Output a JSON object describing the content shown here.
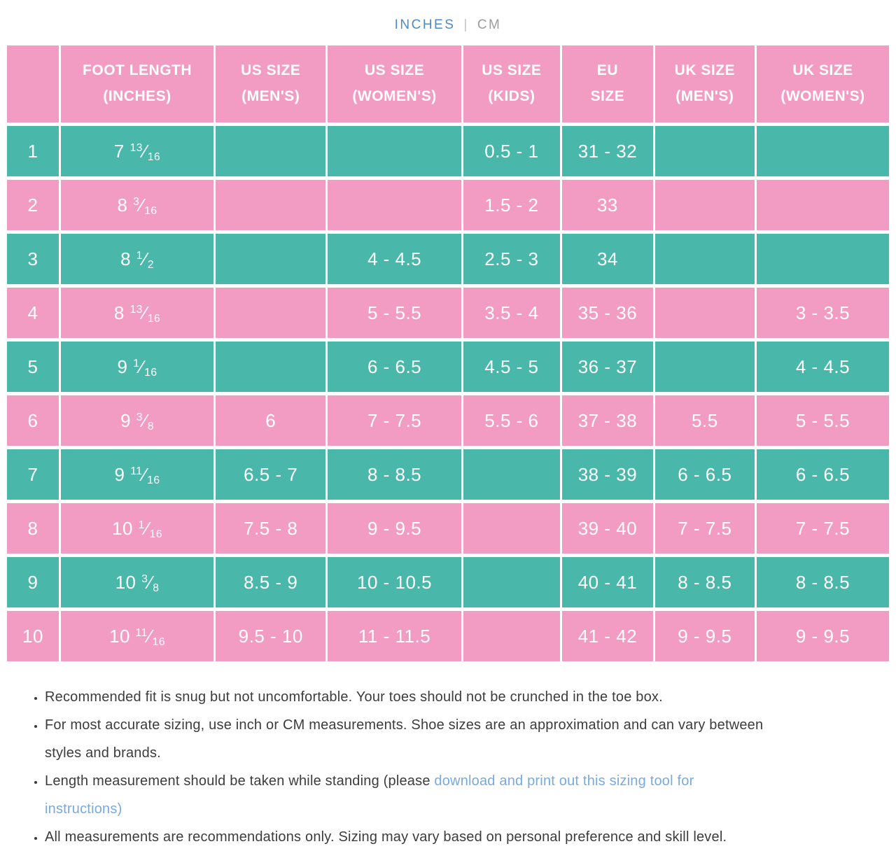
{
  "unit_toggle": {
    "inches_label": "INCHES",
    "separator": "|",
    "cm_label": "CM",
    "active_color": "#4c8bc6",
    "inactive_color": "#9c9c9c"
  },
  "table": {
    "colors": {
      "teal_row": "#49b7aa",
      "pink_row": "#f29cc4",
      "header_bg": "#f29cc4",
      "cell_text": "#ffffff"
    },
    "fraction_slash": "⁄",
    "headers": [
      {
        "line1": "",
        "line2": ""
      },
      {
        "line1": "FOOT LENGTH",
        "line2": "(INCHES)"
      },
      {
        "line1": "US SIZE",
        "line2": "(MEN'S)"
      },
      {
        "line1": "US SIZE",
        "line2": "(WOMEN'S)"
      },
      {
        "line1": "US SIZE",
        "line2": "(KIDS)"
      },
      {
        "line1": "EU",
        "line2": "SIZE"
      },
      {
        "line1": "UK SIZE",
        "line2": "(MEN'S)"
      },
      {
        "line1": "UK SIZE",
        "line2": "(WOMEN'S)"
      }
    ],
    "rows": [
      {
        "num": "1",
        "foot": {
          "whole": "7",
          "num": "13",
          "den": "16"
        },
        "us_mens": "",
        "us_womens": "",
        "us_kids": "0.5 - 1",
        "eu": "31 - 32",
        "uk_mens": "",
        "uk_womens": ""
      },
      {
        "num": "2",
        "foot": {
          "whole": "8",
          "num": "3",
          "den": "16"
        },
        "us_mens": "",
        "us_womens": "",
        "us_kids": "1.5 - 2",
        "eu": "33",
        "uk_mens": "",
        "uk_womens": ""
      },
      {
        "num": "3",
        "foot": {
          "whole": "8",
          "num": "1",
          "den": "2"
        },
        "us_mens": "",
        "us_womens": "4 - 4.5",
        "us_kids": "2.5 - 3",
        "eu": "34",
        "uk_mens": "",
        "uk_womens": ""
      },
      {
        "num": "4",
        "foot": {
          "whole": "8",
          "num": "13",
          "den": "16"
        },
        "us_mens": "",
        "us_womens": "5 - 5.5",
        "us_kids": "3.5 - 4",
        "eu": "35 - 36",
        "uk_mens": "",
        "uk_womens": "3 - 3.5"
      },
      {
        "num": "5",
        "foot": {
          "whole": "9",
          "num": "1",
          "den": "16"
        },
        "us_mens": "",
        "us_womens": "6 - 6.5",
        "us_kids": "4.5 - 5",
        "eu": "36 - 37",
        "uk_mens": "",
        "uk_womens": "4 - 4.5"
      },
      {
        "num": "6",
        "foot": {
          "whole": "9",
          "num": "3",
          "den": "8"
        },
        "us_mens": "6",
        "us_womens": "7 - 7.5",
        "us_kids": "5.5 - 6",
        "eu": "37 - 38",
        "uk_mens": "5.5",
        "uk_womens": "5 - 5.5"
      },
      {
        "num": "7",
        "foot": {
          "whole": "9",
          "num": "11",
          "den": "16"
        },
        "us_mens": "6.5 - 7",
        "us_womens": "8 - 8.5",
        "us_kids": "",
        "eu": "38 - 39",
        "uk_mens": "6 - 6.5",
        "uk_womens": "6 - 6.5"
      },
      {
        "num": "8",
        "foot": {
          "whole": "10",
          "num": "1",
          "den": "16"
        },
        "us_mens": "7.5 - 8",
        "us_womens": "9 - 9.5",
        "us_kids": "",
        "eu": "39 - 40",
        "uk_mens": "7 - 7.5",
        "uk_womens": "7 - 7.5"
      },
      {
        "num": "9",
        "foot": {
          "whole": "10",
          "num": "3",
          "den": "8"
        },
        "us_mens": "8.5 - 9",
        "us_womens": "10 - 10.5",
        "us_kids": "",
        "eu": "40 - 41",
        "uk_mens": "8 - 8.5",
        "uk_womens": "8 - 8.5"
      },
      {
        "num": "10",
        "foot": {
          "whole": "10",
          "num": "11",
          "den": "16"
        },
        "us_mens": "9.5 - 10",
        "us_womens": "11 - 11.5",
        "us_kids": "",
        "eu": "41 - 42",
        "uk_mens": "9 - 9.5",
        "uk_womens": "9 - 9.5"
      }
    ]
  },
  "notes": {
    "items": [
      {
        "text": "Recommended fit is snug but not uncomfortable. Your toes should not be crunched in the toe box."
      },
      {
        "text": "For most accurate sizing, use inch or CM measurements. Shoe sizes are an approximation and can vary between styles and brands."
      },
      {
        "text_before": "Length measurement should be taken while standing (please ",
        "link": "download and print out this sizing tool for instructions",
        "text_after": ")"
      },
      {
        "text": "All measurements are recommendations only. Sizing may vary based on personal preference and skill level."
      }
    ],
    "link_color": "#79aadd"
  }
}
